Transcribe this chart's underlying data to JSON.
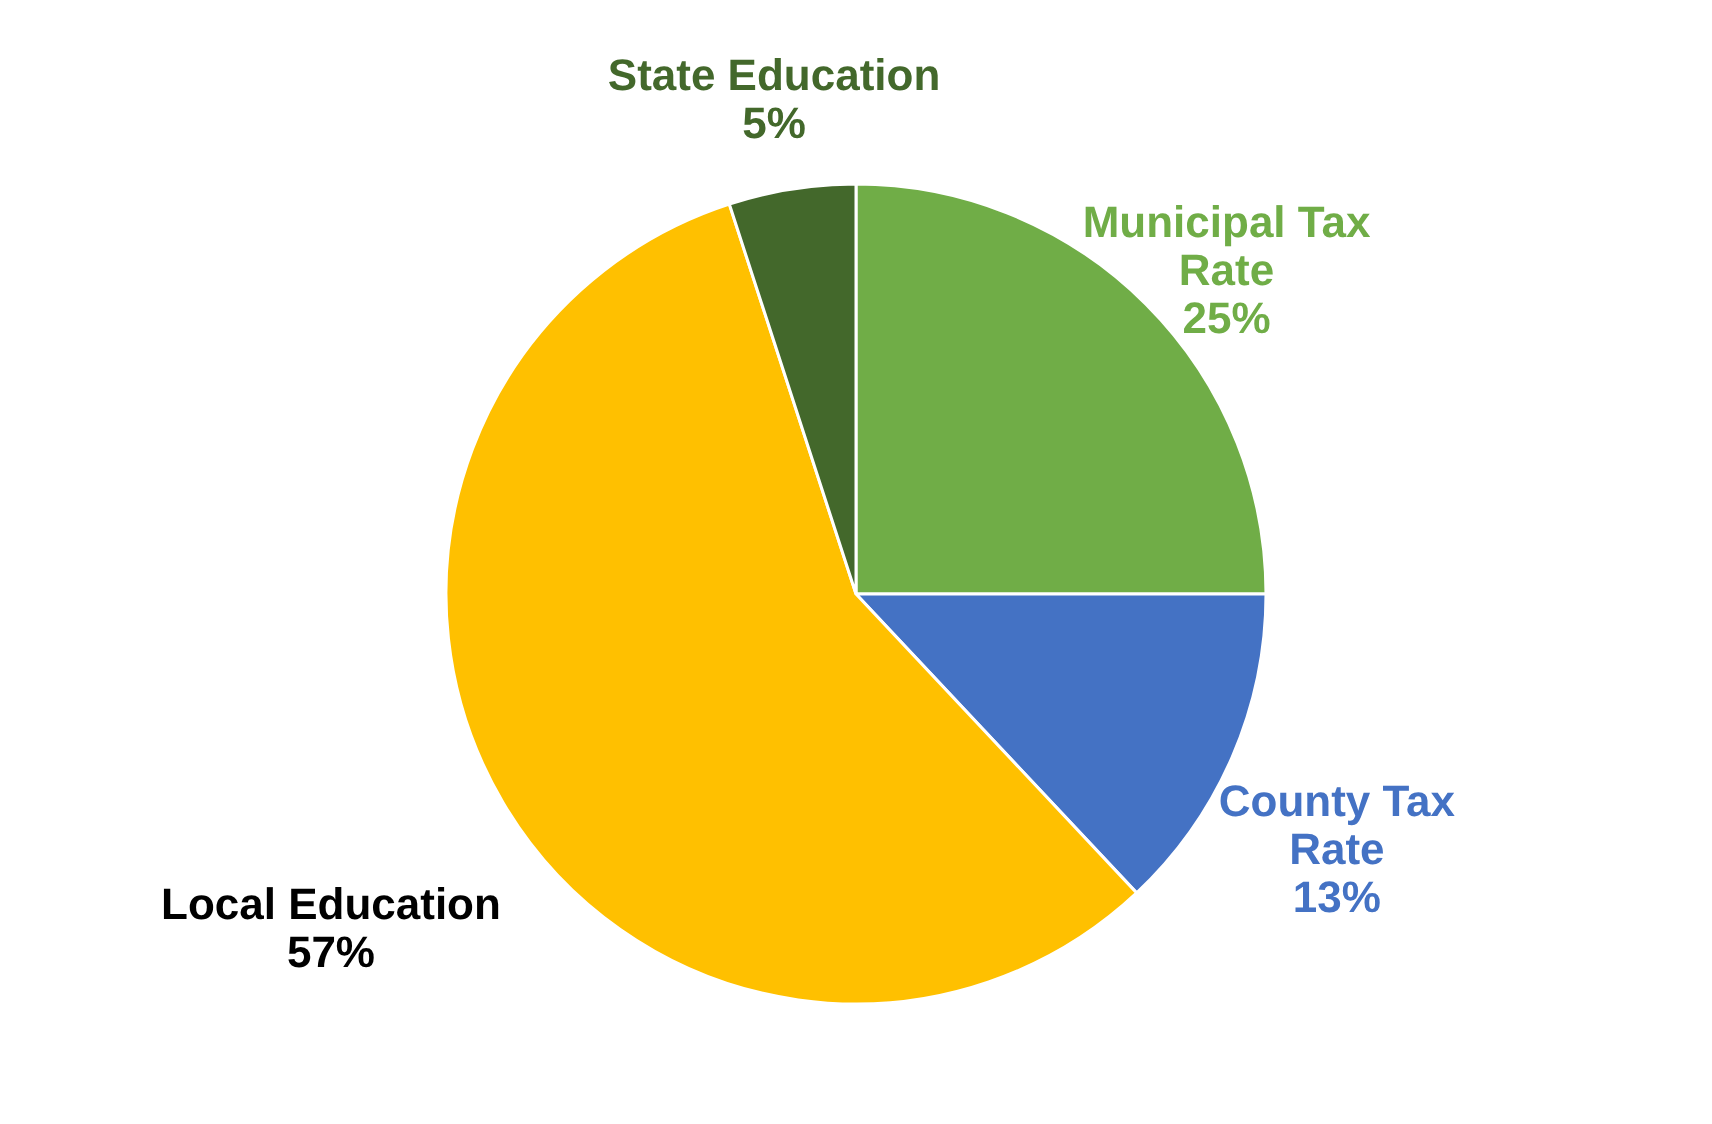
{
  "chart_data": {
    "type": "pie",
    "categories": [
      "Municipal Tax Rate",
      "County Tax Rate",
      "Local Education",
      "State Education"
    ],
    "values": [
      25,
      13,
      57,
      5
    ],
    "value_labels": [
      "25%",
      "13%",
      "57%",
      "5%"
    ],
    "colors": [
      "#70ad47",
      "#4472c4",
      "#ffc000",
      "#43682b"
    ],
    "legend": false
  }
}
